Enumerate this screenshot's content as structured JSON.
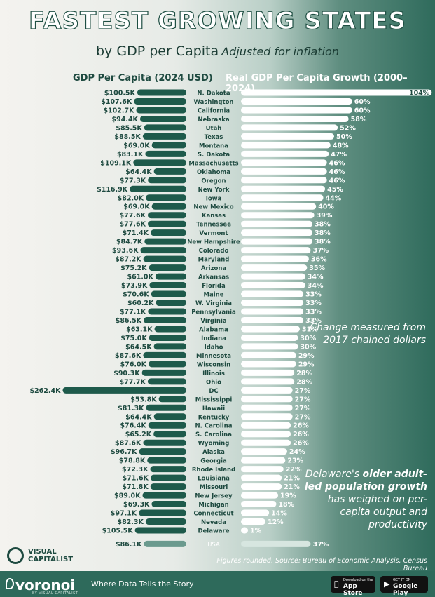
{
  "title": "Fastest Growing States",
  "subtitle": "by GDP per Capita",
  "subtitle_note": "Adjusted for inflation",
  "headers": {
    "left": "GDP Per Capita (2024 USD)",
    "right": "Real GDP Per Capita Growth (2000–2024)"
  },
  "notes": {
    "chained": "Change measured from 2017 chained dollars",
    "delaware_pre": "Delaware's",
    "delaware_bold": "older adult-led population growth",
    "delaware_post": "has weighed on per-capita output and productivity"
  },
  "source": "Figures rounded. Source: Bureau of Economic Analysis, Census Bureau",
  "logo": {
    "line1": "VISUAL",
    "line2": "CAPITALIST",
    "icon": "visual-capitalist-logo-icon"
  },
  "footer": {
    "brand": "voronoi",
    "brand_sub": "BY VISUAL CAPITALIST",
    "tagline": "Where Data Tells the Story",
    "app_store_small": "Download on the",
    "app_store_big": "App Store",
    "google_small": "GET IT ON",
    "google_big": "Google Play"
  },
  "colors": {
    "gdp_bar": "#1e5a4b",
    "growth_bar": "#ffffff",
    "us_gdp_bar": "#6b9a8e",
    "us_growth_bar": "#d7e6e0",
    "label_dark": "#1e4a40"
  },
  "chart_data": {
    "type": "bar",
    "series": [
      {
        "name": "GDP Per Capita (2024 USD)",
        "unit": "$K"
      },
      {
        "name": "Real GDP Per Capita Growth (2000–2024)",
        "unit": "%"
      }
    ],
    "rows": [
      {
        "state": "N. Dakota",
        "gdp": 100.5,
        "gdp_label": "$100.5K",
        "growth": 104,
        "growth_label": "104%"
      },
      {
        "state": "Washington",
        "gdp": 107.6,
        "gdp_label": "$107.6K",
        "growth": 60,
        "growth_label": "60%"
      },
      {
        "state": "California",
        "gdp": 102.7,
        "gdp_label": "$102.7K",
        "growth": 60,
        "growth_label": "60%"
      },
      {
        "state": "Nebraska",
        "gdp": 94.4,
        "gdp_label": "$94.4K",
        "growth": 58,
        "growth_label": "58%"
      },
      {
        "state": "Utah",
        "gdp": 85.5,
        "gdp_label": "$85.5K",
        "growth": 52,
        "growth_label": "52%"
      },
      {
        "state": "Texas",
        "gdp": 88.5,
        "gdp_label": "$88.5K",
        "growth": 50,
        "growth_label": "50%"
      },
      {
        "state": "Montana",
        "gdp": 69.0,
        "gdp_label": "$69.0K",
        "growth": 48,
        "growth_label": "48%"
      },
      {
        "state": "S. Dakota",
        "gdp": 83.1,
        "gdp_label": "$83.1K",
        "growth": 47,
        "growth_label": "47%"
      },
      {
        "state": "Massachusetts",
        "gdp": 109.1,
        "gdp_label": "$109.1K",
        "growth": 46,
        "growth_label": "46%"
      },
      {
        "state": "Oklahoma",
        "gdp": 64.4,
        "gdp_label": "$64.4K",
        "growth": 46,
        "growth_label": "46%"
      },
      {
        "state": "Oregon",
        "gdp": 77.3,
        "gdp_label": "$77.3K",
        "growth": 46,
        "growth_label": "46%"
      },
      {
        "state": "New York",
        "gdp": 116.9,
        "gdp_label": "$116.9K",
        "growth": 45,
        "growth_label": "45%"
      },
      {
        "state": "Iowa",
        "gdp": 82.0,
        "gdp_label": "$82.0K",
        "growth": 44,
        "growth_label": "44%"
      },
      {
        "state": "New Mexico",
        "gdp": 69.0,
        "gdp_label": "$69.0K",
        "growth": 40,
        "growth_label": "40%"
      },
      {
        "state": "Kansas",
        "gdp": 77.6,
        "gdp_label": "$77.6K",
        "growth": 39,
        "growth_label": "39%"
      },
      {
        "state": "Tennessee",
        "gdp": 77.6,
        "gdp_label": "$77.6K",
        "growth": 38,
        "growth_label": "38%"
      },
      {
        "state": "Vermont",
        "gdp": 71.4,
        "gdp_label": "$71.4K",
        "growth": 38,
        "growth_label": "38%"
      },
      {
        "state": "New Hampshire",
        "gdp": 84.7,
        "gdp_label": "$84.7K",
        "growth": 38,
        "growth_label": "38%"
      },
      {
        "state": "Colorado",
        "gdp": 93.6,
        "gdp_label": "$93.6K",
        "growth": 37,
        "growth_label": "37%"
      },
      {
        "state": "Maryland",
        "gdp": 87.2,
        "gdp_label": "$87.2K",
        "growth": 36,
        "growth_label": "36%"
      },
      {
        "state": "Arizona",
        "gdp": 75.2,
        "gdp_label": "$75.2K",
        "growth": 35,
        "growth_label": "35%"
      },
      {
        "state": "Arkansas",
        "gdp": 61.0,
        "gdp_label": "$61.0K",
        "growth": 34,
        "growth_label": "34%"
      },
      {
        "state": "Florida",
        "gdp": 73.9,
        "gdp_label": "$73.9K",
        "growth": 34,
        "growth_label": "34%"
      },
      {
        "state": "Maine",
        "gdp": 70.6,
        "gdp_label": "$70.6K",
        "growth": 33,
        "growth_label": "33%"
      },
      {
        "state": "W. Virginia",
        "gdp": 60.2,
        "gdp_label": "$60.2K",
        "growth": 33,
        "growth_label": "33%"
      },
      {
        "state": "Pennsylvania",
        "gdp": 77.1,
        "gdp_label": "$77.1K",
        "growth": 33,
        "growth_label": "33%"
      },
      {
        "state": "Virginia",
        "gdp": 86.5,
        "gdp_label": "$86.5K",
        "growth": 33,
        "growth_label": "33%"
      },
      {
        "state": "Alabama",
        "gdp": 63.1,
        "gdp_label": "$63.1K",
        "growth": 31,
        "growth_label": "31%"
      },
      {
        "state": "Indiana",
        "gdp": 75.0,
        "gdp_label": "$75.0K",
        "growth": 30,
        "growth_label": "30%"
      },
      {
        "state": "Idaho",
        "gdp": 64.5,
        "gdp_label": "$64.5K",
        "growth": 30,
        "growth_label": "30%"
      },
      {
        "state": "Minnesota",
        "gdp": 87.6,
        "gdp_label": "$87.6K",
        "growth": 29,
        "growth_label": "29%"
      },
      {
        "state": "Wisconsin",
        "gdp": 76.0,
        "gdp_label": "$76.0K",
        "growth": 29,
        "growth_label": "29%"
      },
      {
        "state": "Illinois",
        "gdp": 90.3,
        "gdp_label": "$90.3K",
        "growth": 28,
        "growth_label": "28%"
      },
      {
        "state": "Ohio",
        "gdp": 77.7,
        "gdp_label": "$77.7K",
        "growth": 28,
        "growth_label": "28%"
      },
      {
        "state": "DC",
        "gdp": 262.4,
        "gdp_label": "$262.4K",
        "growth": 27,
        "growth_label": "27%"
      },
      {
        "state": "Mississippi",
        "gdp": 53.8,
        "gdp_label": "$53.8K",
        "growth": 27,
        "growth_label": "27%"
      },
      {
        "state": "Hawaii",
        "gdp": 81.3,
        "gdp_label": "$81.3K",
        "growth": 27,
        "growth_label": "27%"
      },
      {
        "state": "Kentucky",
        "gdp": 64.4,
        "gdp_label": "$64.4K",
        "growth": 27,
        "growth_label": "27%"
      },
      {
        "state": "N. Carolina",
        "gdp": 76.4,
        "gdp_label": "$76.4K",
        "growth": 26,
        "growth_label": "26%"
      },
      {
        "state": "S. Carolina",
        "gdp": 65.2,
        "gdp_label": "$65.2K",
        "growth": 26,
        "growth_label": "26%"
      },
      {
        "state": "Wyoming",
        "gdp": 87.6,
        "gdp_label": "$87.6K",
        "growth": 26,
        "growth_label": "26%"
      },
      {
        "state": "Alaska",
        "gdp": 96.7,
        "gdp_label": "$96.7K",
        "growth": 24,
        "growth_label": "24%"
      },
      {
        "state": "Georgia",
        "gdp": 78.8,
        "gdp_label": "$78.8K",
        "growth": 23,
        "growth_label": "23%"
      },
      {
        "state": "Rhode Island",
        "gdp": 72.3,
        "gdp_label": "$72.3K",
        "growth": 22,
        "growth_label": "22%"
      },
      {
        "state": "Louisiana",
        "gdp": 71.6,
        "gdp_label": "$71.6K",
        "growth": 21,
        "growth_label": "21%"
      },
      {
        "state": "Missouri",
        "gdp": 71.8,
        "gdp_label": "$71.8K",
        "growth": 21,
        "growth_label": "21%"
      },
      {
        "state": "New Jersey",
        "gdp": 89.0,
        "gdp_label": "$89.0K",
        "growth": 19,
        "growth_label": "19%"
      },
      {
        "state": "Michigan",
        "gdp": 69.3,
        "gdp_label": "$69.3K",
        "growth": 18,
        "growth_label": "18%"
      },
      {
        "state": "Connecticut",
        "gdp": 97.1,
        "gdp_label": "$97.1K",
        "growth": 14,
        "growth_label": "14%"
      },
      {
        "state": "Nevada",
        "gdp": 82.3,
        "gdp_label": "$82.3K",
        "growth": 12,
        "growth_label": "12%"
      },
      {
        "state": "Delaware",
        "gdp": 105.5,
        "gdp_label": "$105.5K",
        "growth": 1,
        "growth_label": "1%"
      }
    ],
    "us": {
      "state": "USA",
      "gdp": 86.1,
      "gdp_label": "$86.1K",
      "growth": 37,
      "growth_label": "37%"
    }
  }
}
